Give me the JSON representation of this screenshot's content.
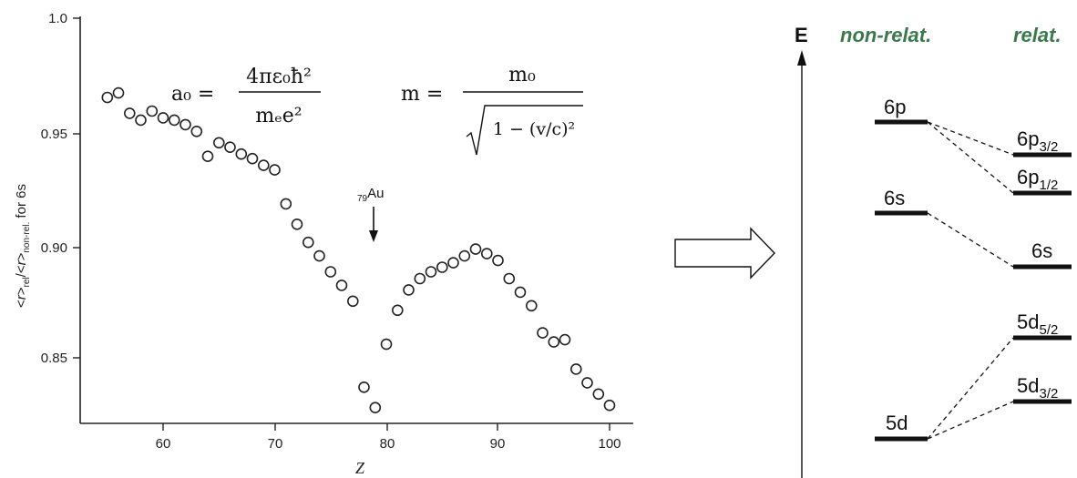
{
  "chart_data": {
    "type": "scatter",
    "xlabel": "Z",
    "ylabel": "<r>rel/<r>non-rel. for 6s",
    "xlim": [
      53,
      102
    ],
    "ylim": [
      0.823,
      1.001
    ],
    "xticks": [
      "60",
      "70",
      "80",
      "90",
      "100"
    ],
    "yticks": [
      "0.85",
      "0.90",
      "0.95",
      "1.0"
    ],
    "marker": "open-circle",
    "grid": false,
    "annotation": {
      "label": "79Au",
      "x": 79
    },
    "points": [
      {
        "x": 55,
        "y": 0.965
      },
      {
        "x": 56,
        "y": 0.967
      },
      {
        "x": 57,
        "y": 0.958
      },
      {
        "x": 58,
        "y": 0.955
      },
      {
        "x": 59,
        "y": 0.959
      },
      {
        "x": 60,
        "y": 0.956
      },
      {
        "x": 61,
        "y": 0.955
      },
      {
        "x": 62,
        "y": 0.953
      },
      {
        "x": 63,
        "y": 0.95
      },
      {
        "x": 64,
        "y": 0.939
      },
      {
        "x": 65,
        "y": 0.945
      },
      {
        "x": 66,
        "y": 0.943
      },
      {
        "x": 67,
        "y": 0.94
      },
      {
        "x": 68,
        "y": 0.938
      },
      {
        "x": 69,
        "y": 0.935
      },
      {
        "x": 70,
        "y": 0.933
      },
      {
        "x": 71,
        "y": 0.918
      },
      {
        "x": 72,
        "y": 0.909
      },
      {
        "x": 73,
        "y": 0.901
      },
      {
        "x": 74,
        "y": 0.895
      },
      {
        "x": 75,
        "y": 0.888
      },
      {
        "x": 76,
        "y": 0.882
      },
      {
        "x": 77,
        "y": 0.875
      },
      {
        "x": 78,
        "y": 0.837
      },
      {
        "x": 79,
        "y": 0.828
      },
      {
        "x": 80,
        "y": 0.856
      },
      {
        "x": 81,
        "y": 0.871
      },
      {
        "x": 82,
        "y": 0.88
      },
      {
        "x": 83,
        "y": 0.885
      },
      {
        "x": 84,
        "y": 0.888
      },
      {
        "x": 85,
        "y": 0.89
      },
      {
        "x": 86,
        "y": 0.892
      },
      {
        "x": 87,
        "y": 0.895
      },
      {
        "x": 88,
        "y": 0.898
      },
      {
        "x": 89,
        "y": 0.896
      },
      {
        "x": 90,
        "y": 0.893
      },
      {
        "x": 91,
        "y": 0.885
      },
      {
        "x": 92,
        "y": 0.879
      },
      {
        "x": 93,
        "y": 0.873
      },
      {
        "x": 94,
        "y": 0.861
      },
      {
        "x": 95,
        "y": 0.857
      },
      {
        "x": 96,
        "y": 0.858
      },
      {
        "x": 97,
        "y": 0.845
      },
      {
        "x": 98,
        "y": 0.839
      },
      {
        "x": 99,
        "y": 0.834
      },
      {
        "x": 100,
        "y": 0.829
      }
    ]
  },
  "formulas": {
    "bohr_lhs": "a₀ =",
    "bohr_num": "4πε₀ħ²",
    "bohr_den": "mₑe²",
    "mass_lhs": "m =",
    "mass_num": "m₀",
    "mass_den": "1 − (v/c)²"
  },
  "arrow_label": "right-arrow",
  "diagram": {
    "energy_axis_label": "E",
    "header_nonrel": "non-relat.",
    "header_rel": "relat.",
    "header_color": "#3a7a4a",
    "levels_nonrel": [
      {
        "id": "6p",
        "main": "6p",
        "sub": ""
      },
      {
        "id": "6s",
        "main": "6s",
        "sub": ""
      },
      {
        "id": "5d",
        "main": "5d",
        "sub": ""
      }
    ],
    "levels_rel": [
      {
        "id": "6p32",
        "main": "6p",
        "sub": "3/2"
      },
      {
        "id": "6p12",
        "main": "6p",
        "sub": "1/2"
      },
      {
        "id": "6s",
        "main": "6s",
        "sub": ""
      },
      {
        "id": "5d52",
        "main": "5d",
        "sub": "5/2"
      },
      {
        "id": "5d32",
        "main": "5d",
        "sub": "3/2"
      }
    ]
  }
}
